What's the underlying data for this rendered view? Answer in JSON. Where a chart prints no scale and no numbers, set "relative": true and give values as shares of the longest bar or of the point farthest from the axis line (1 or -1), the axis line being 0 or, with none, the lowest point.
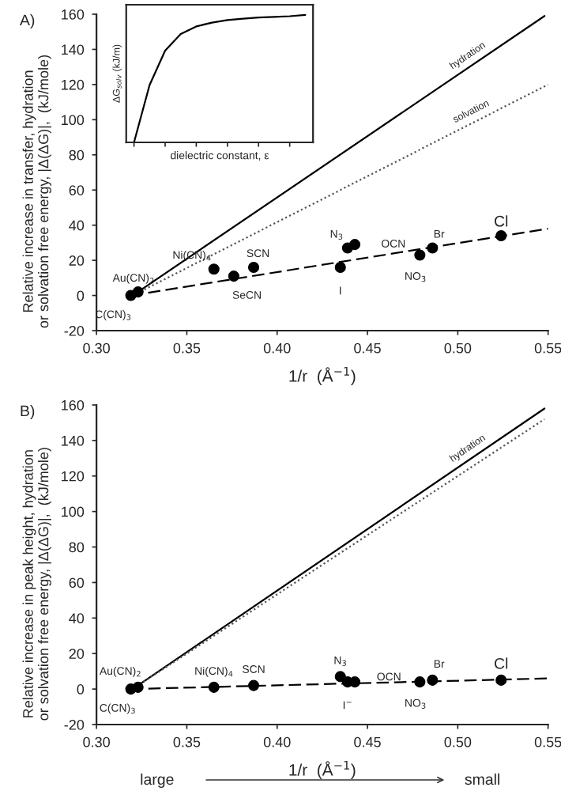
{
  "chart_data": [
    {
      "type": "scatter",
      "title": "A)",
      "xlabel": "1/r  (Å$^{−1}$)",
      "ylabel": "Relative increase in transfer, hydration\nor solvation free energy, |Δ(ΔG)|,  (kJ/mole)",
      "xlim": [
        0.3,
        0.55
      ],
      "ylim": [
        -20,
        160
      ],
      "xticks": [
        {
          "value": 0.3,
          "label": "0.30"
        },
        {
          "value": 0.35,
          "label": "0.35"
        },
        {
          "value": 0.4,
          "label": "0.40"
        },
        {
          "value": 0.45,
          "label": "0.45"
        },
        {
          "value": 0.5,
          "label": "0.50"
        },
        {
          "value": 0.55,
          "label": "0.55"
        }
      ],
      "yticks": [
        -20,
        0,
        20,
        40,
        60,
        80,
        100,
        120,
        140,
        160
      ],
      "legend": false,
      "series": [
        {
          "type": "line",
          "name": "hydration",
          "color": "#000000",
          "line_style": "solid",
          "marker": "none",
          "x": [
            0.32,
            0.548
          ],
          "values": [
            0,
            159
          ]
        },
        {
          "type": "line",
          "name": "solvation",
          "color": "#555555",
          "line_style": "dotted",
          "marker": "none",
          "x": [
            0.32,
            0.55
          ],
          "values": [
            0,
            120
          ]
        },
        {
          "type": "line",
          "color": "#000000",
          "line_style": "dashed",
          "marker": "none",
          "x": [
            0.319,
            0.55
          ],
          "values": [
            0,
            38
          ]
        },
        {
          "type": "scatter",
          "color": "#000000",
          "marker": "circle",
          "x": [
            0.319,
            0.323,
            0.365,
            0.376,
            0.387,
            0.435,
            0.439,
            0.443,
            0.479,
            0.486,
            0.524
          ],
          "values": [
            0,
            2,
            15,
            11,
            16,
            16,
            27,
            29,
            23,
            27,
            34
          ]
        }
      ],
      "annotations": [
        {
          "text": "C(CN)$_{3}$",
          "x": 0.319,
          "y": 0
        },
        {
          "text": "Au(CN)$_{2}$",
          "x": 0.323,
          "y": 2
        },
        {
          "text": "Ni(CN)$_{4}$",
          "x": 0.365,
          "y": 15
        },
        {
          "text": "SeCN",
          "x": 0.376,
          "y": 11
        },
        {
          "text": "SCN",
          "x": 0.387,
          "y": 16
        },
        {
          "text": "I",
          "x": 0.435,
          "y": 16
        },
        {
          "text": "N$_{3}$",
          "x": 0.439,
          "y": 27
        },
        {
          "text": "OCN",
          "x": 0.443,
          "y": 29
        },
        {
          "text": "NO$_{3}$",
          "x": 0.479,
          "y": 23
        },
        {
          "text": "Br",
          "x": 0.486,
          "y": 27
        },
        {
          "text": "Cl",
          "x": 0.524,
          "y": 34
        }
      ]
    },
    {
      "type": "line",
      "relative": true,
      "xlabel": "dielectric constant, ε",
      "ylabel": "ΔG$_{solv}$ (kJ/m)",
      "tick_labels": false,
      "legend": false,
      "categories": [
        null,
        null,
        null,
        null,
        null,
        null,
        null,
        null,
        null,
        null,
        null,
        null
      ],
      "series": [
        {
          "color": "#000000",
          "line_style": "solid",
          "marker": "none",
          "values": [
            0,
            0.45,
            0.72,
            0.85,
            0.91,
            0.94,
            0.96,
            0.97,
            0.98,
            0.985,
            0.99,
            1.0
          ]
        }
      ]
    },
    {
      "type": "scatter",
      "title": "B)",
      "xlabel": "1/r  (Å$^{−1}$)",
      "ylabel": "Relative increase in peak height, hydration\nor solvation free energy, |Δ(ΔG)|,  (kJ/mole)",
      "xlim": [
        0.3,
        0.55
      ],
      "ylim": [
        -20,
        160
      ],
      "xticks": [
        {
          "value": 0.3,
          "label": "0.30"
        },
        {
          "value": 0.35,
          "label": "0.35"
        },
        {
          "value": 0.4,
          "label": "0.40"
        },
        {
          "value": 0.45,
          "label": "0.45"
        },
        {
          "value": 0.5,
          "label": "0.50"
        },
        {
          "value": 0.55,
          "label": "0.55"
        }
      ],
      "yticks": [
        -20,
        0,
        20,
        40,
        60,
        80,
        100,
        120,
        140,
        160
      ],
      "legend": false,
      "series": [
        {
          "type": "line",
          "name": "hydration",
          "color": "#000000",
          "line_style": "solid",
          "marker": "none",
          "x": [
            0.32,
            0.548
          ],
          "values": [
            0,
            158
          ]
        },
        {
          "type": "line",
          "color": "#555555",
          "line_style": "dotted",
          "marker": "none",
          "x": [
            0.32,
            0.548
          ],
          "values": [
            0,
            152
          ]
        },
        {
          "type": "line",
          "color": "#000000",
          "line_style": "dashed",
          "marker": "none",
          "x": [
            0.319,
            0.55
          ],
          "values": [
            0,
            6
          ]
        },
        {
          "type": "scatter",
          "color": "#000000",
          "marker": "circle",
          "x": [
            0.319,
            0.323,
            0.365,
            0.387,
            0.435,
            0.439,
            0.443,
            0.479,
            0.486,
            0.524
          ],
          "values": [
            0,
            1,
            1,
            2,
            7,
            4,
            4,
            4,
            5,
            5
          ]
        }
      ],
      "annotations": [
        {
          "text": "C(CN)$_{3}$",
          "x": 0.319,
          "y": 0
        },
        {
          "text": "Au(CN)$_{2}$",
          "x": 0.323,
          "y": 1
        },
        {
          "text": "Ni(CN)$_{4}$",
          "x": 0.365,
          "y": 1
        },
        {
          "text": "SCN",
          "x": 0.387,
          "y": 2
        },
        {
          "text": "N$_{3}$",
          "x": 0.435,
          "y": 7
        },
        {
          "text": "I$^{−}$",
          "x": 0.439,
          "y": 4
        },
        {
          "text": "OCN",
          "x": 0.443,
          "y": 4
        },
        {
          "text": "NO$_{3}$",
          "x": 0.479,
          "y": 4
        },
        {
          "text": "Br",
          "x": 0.486,
          "y": 5
        },
        {
          "text": "Cl",
          "x": 0.524,
          "y": 5
        },
        "large",
        "small"
      ]
    }
  ]
}
